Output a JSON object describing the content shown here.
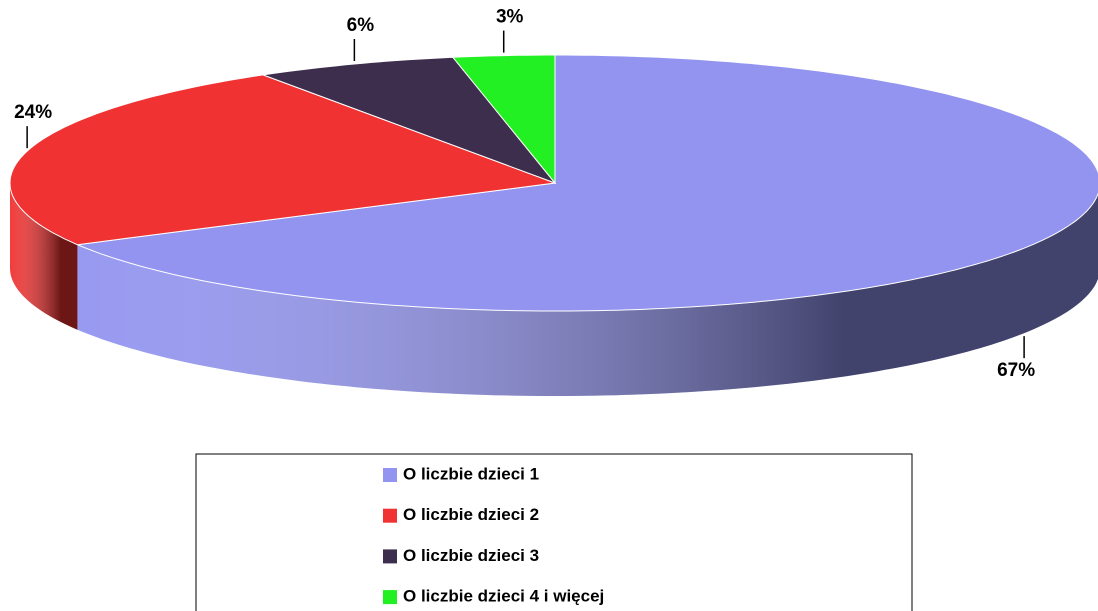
{
  "chart_data": {
    "type": "pie",
    "categories": [
      "O liczbie dzieci 1",
      "O liczbie dzieci 2",
      "O liczbie dzieci 3",
      "O liczbie dzieci 4 i więcej"
    ],
    "values": [
      67,
      24,
      6,
      3
    ],
    "value_labels": [
      "67%",
      "24%",
      "6%",
      "3%"
    ],
    "colors": [
      "#9294f0",
      "#f03232",
      "#3e2e4e",
      "#22f022"
    ],
    "legend": "bottom"
  }
}
